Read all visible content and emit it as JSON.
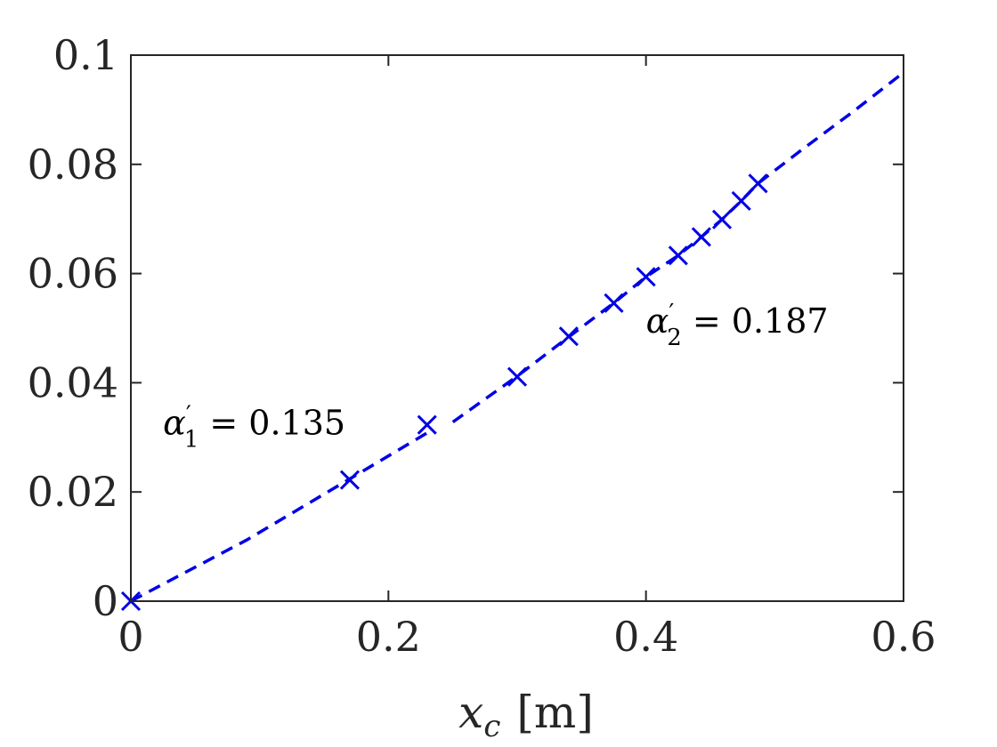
{
  "chart_data": {
    "type": "scatter",
    "xlabel": {
      "var": "x",
      "sub": "c",
      "unit": "[m]"
    },
    "ylabel": "",
    "xlim": [
      0,
      0.6
    ],
    "ylim": [
      0,
      0.1
    ],
    "x_ticks": [
      0,
      0.2,
      0.4,
      0.6
    ],
    "x_tick_labels": [
      "0",
      "0.2",
      "0.4",
      "0.6"
    ],
    "y_ticks": [
      0,
      0.02,
      0.04,
      0.06,
      0.08,
      0.1
    ],
    "y_tick_labels": [
      "0",
      "0.02",
      "0.04",
      "0.06",
      "0.08",
      "0.1"
    ],
    "grid": false,
    "colors": {
      "series": "#0000e6",
      "axes": "#262626"
    },
    "markers": {
      "x": [
        0,
        0.17,
        0.23,
        0.3,
        0.34,
        0.375,
        0.4,
        0.425,
        0.443,
        0.459,
        0.474,
        0.487
      ],
      "y": [
        0,
        0.0222,
        0.0323,
        0.0411,
        0.0485,
        0.0546,
        0.0594,
        0.0633,
        0.0667,
        0.0699,
        0.0733,
        0.0765
      ]
    },
    "fit_lines": [
      {
        "x": [
          0,
          0.09,
          0.17,
          0.23
        ],
        "y": [
          0,
          0.0112,
          0.0224,
          0.0308
        ]
      },
      {
        "x": [
          0.25,
          0.3,
          0.34,
          0.375,
          0.4,
          0.425,
          0.443,
          0.459,
          0.474,
          0.487,
          0.52,
          0.56,
          0.6
        ],
        "y": [
          0.0328,
          0.0412,
          0.0484,
          0.0546,
          0.0594,
          0.0633,
          0.0667,
          0.0699,
          0.0733,
          0.0765,
          0.0825,
          0.0895,
          0.0968
        ]
      }
    ],
    "annotations": [
      {
        "symbol": "α",
        "prime": "′",
        "sub": "1",
        "text": " = 0.135",
        "x": 0.025,
        "y": 0.0305
      },
      {
        "symbol": "α",
        "prime": "′",
        "sub": "2",
        "text": " = 0.187",
        "x": 0.4,
        "y": 0.0492
      }
    ]
  }
}
